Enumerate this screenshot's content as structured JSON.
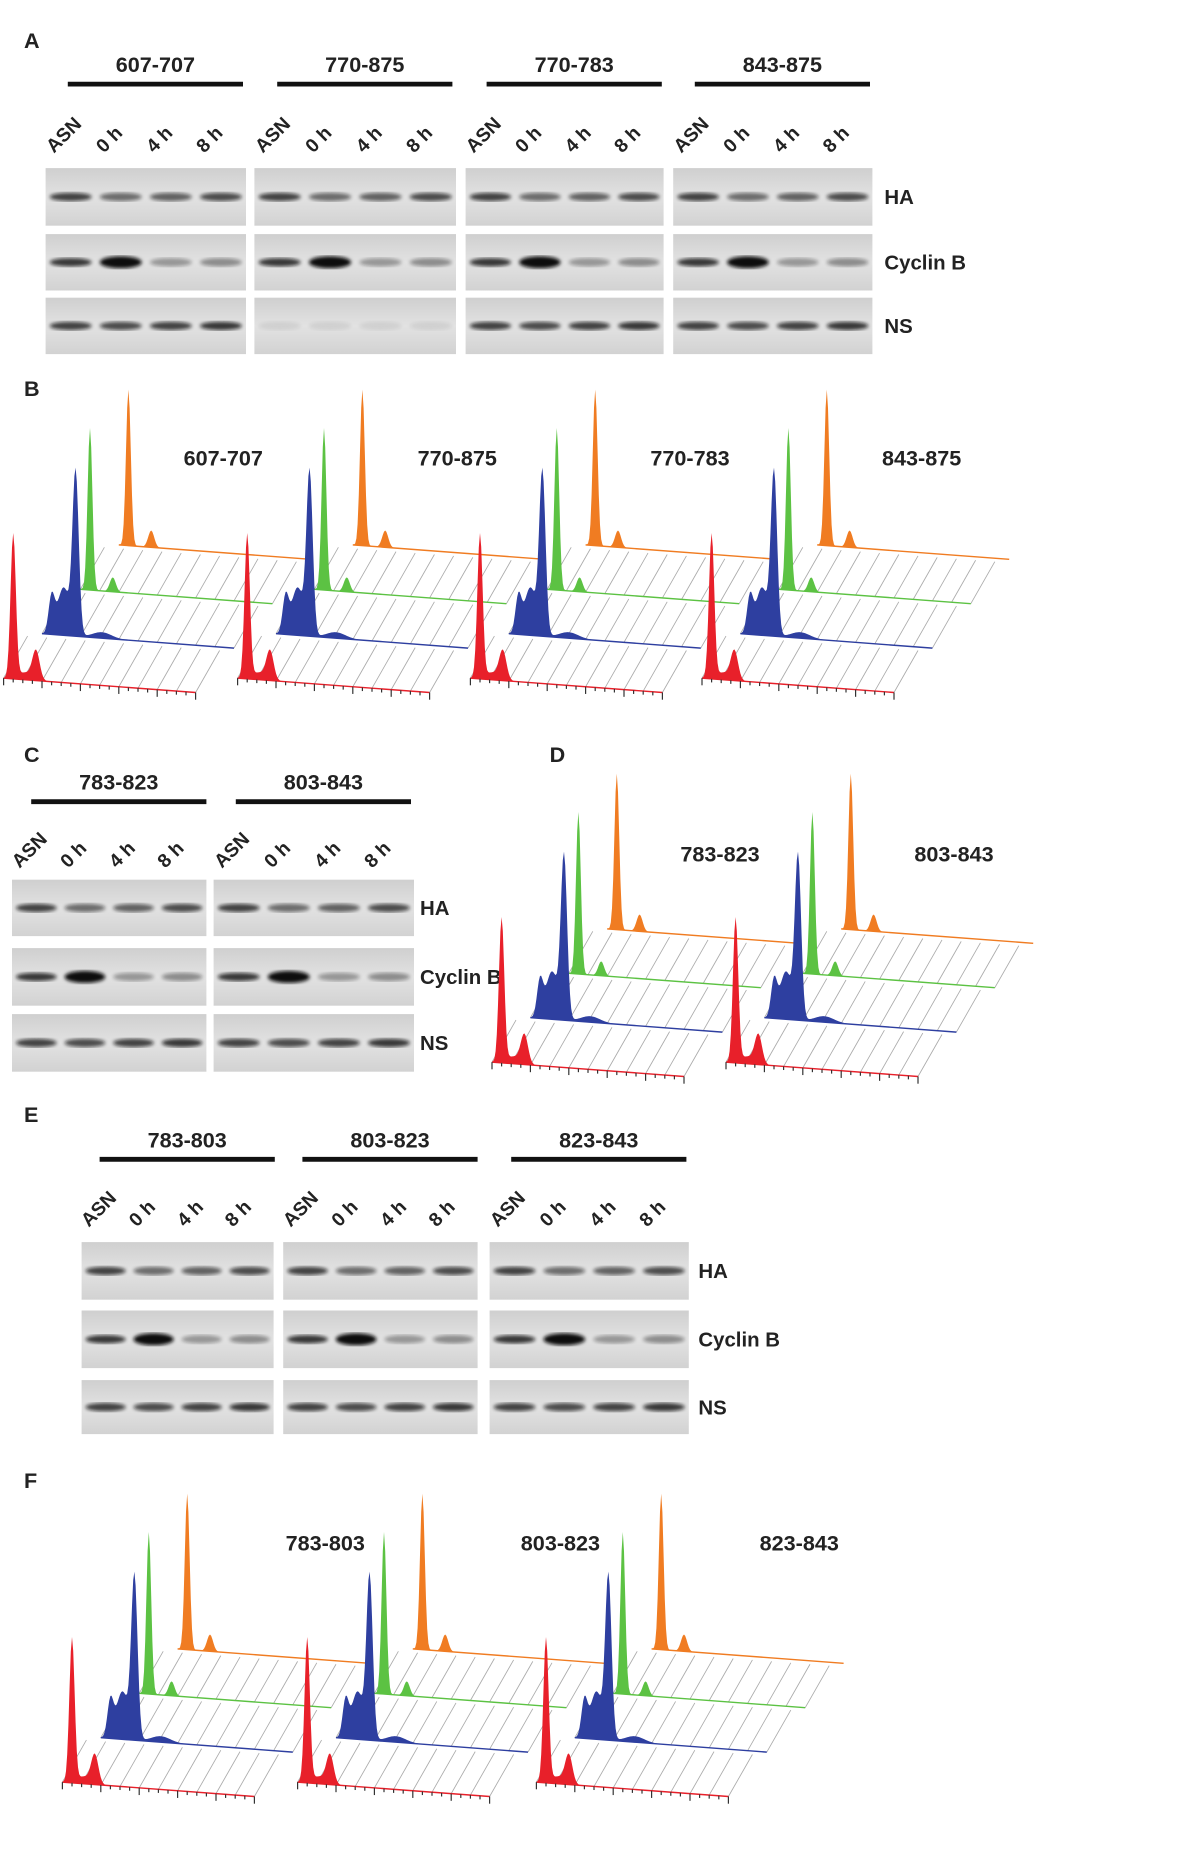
{
  "panels": [
    {
      "letter": "A",
      "groups": [
        {
          "label": "607-707",
          "lanes": [
            "ASN",
            "0 h",
            "4 h",
            "8 h"
          ]
        },
        {
          "label": "770-875",
          "lanes": [
            "ASN",
            "0 h",
            "4 h",
            "8 h"
          ]
        },
        {
          "label": "770-783",
          "lanes": [
            "ASN",
            "0 h",
            "4 h",
            "8 h"
          ]
        },
        {
          "label": "843-875",
          "lanes": [
            "ASN",
            "0 h",
            "4 h",
            "8 h"
          ]
        }
      ],
      "rows": [
        "HA",
        "Cyclin B",
        "NS"
      ]
    },
    {
      "letter": "B",
      "labels": [
        "607-707",
        "770-875",
        "770-783",
        "843-875"
      ]
    },
    {
      "letter": "C",
      "groups": [
        {
          "label": "783-823",
          "lanes": [
            "ASN",
            "0 h",
            "4 h",
            "8 h"
          ]
        },
        {
          "label": "803-843",
          "lanes": [
            "ASN",
            "0 h",
            "4 h",
            "8 h"
          ]
        }
      ],
      "rows": [
        "HA",
        "Cyclin B",
        "NS"
      ]
    },
    {
      "letter": "D",
      "labels": [
        "783-823",
        "803-843"
      ]
    },
    {
      "letter": "E",
      "groups": [
        {
          "label": "783-803",
          "lanes": [
            "ASN",
            "0 h",
            "4 h",
            "8 h"
          ]
        },
        {
          "label": "803-823",
          "lanes": [
            "ASN",
            "0 h",
            "4 h",
            "8 h"
          ]
        },
        {
          "label": "823-843",
          "lanes": [
            "ASN",
            "0 h",
            "4 h",
            "8 h"
          ]
        }
      ],
      "rows": [
        "HA",
        "Cyclin B",
        "NS"
      ]
    },
    {
      "letter": "F",
      "labels": [
        "783-803",
        "803-823",
        "823-843"
      ]
    }
  ]
}
